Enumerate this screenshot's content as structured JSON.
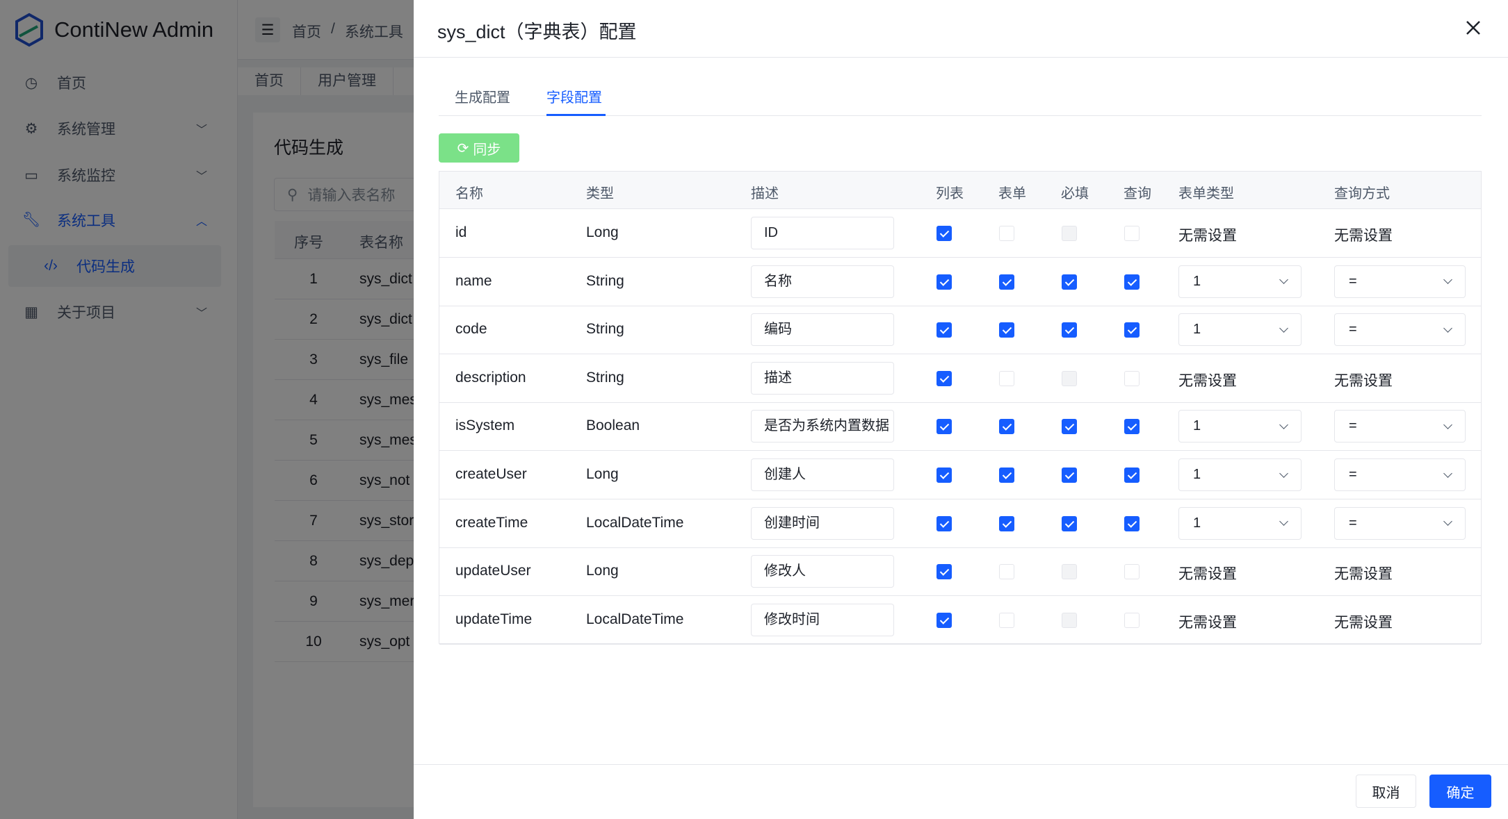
{
  "app": {
    "title": "ContiNew Admin"
  },
  "sidebar": {
    "items": [
      {
        "label": "首页",
        "icon": "dashboard-icon"
      },
      {
        "label": "系统管理",
        "icon": "gear-icon",
        "chevron": "down"
      },
      {
        "label": "系统监控",
        "icon": "monitor-icon",
        "chevron": "down"
      },
      {
        "label": "系统工具",
        "icon": "wrench-icon",
        "chevron": "up",
        "active": true
      },
      {
        "label": "代码生成",
        "icon": "code-icon",
        "sub": true
      },
      {
        "label": "关于项目",
        "icon": "apps-icon",
        "chevron": "down"
      }
    ]
  },
  "breadcrumb": [
    "首页",
    "/",
    "系统工具"
  ],
  "page_tabs": [
    "首页",
    "用户管理"
  ],
  "background": {
    "title": "代码生成",
    "search_placeholder": "请输入表名称",
    "columns": [
      "序号",
      "表名称"
    ],
    "rows": [
      [
        "1",
        "sys_dict"
      ],
      [
        "2",
        "sys_dict"
      ],
      [
        "3",
        "sys_file"
      ],
      [
        "4",
        "sys_mes"
      ],
      [
        "5",
        "sys_mes"
      ],
      [
        "6",
        "sys_not"
      ],
      [
        "7",
        "sys_stor"
      ],
      [
        "8",
        "sys_dep"
      ],
      [
        "9",
        "sys_mer"
      ],
      [
        "10",
        "sys_opt"
      ]
    ]
  },
  "drawer": {
    "title": "sys_dict（字典表）配置",
    "tabs": [
      {
        "label": "生成配置"
      },
      {
        "label": "字段配置",
        "active": true
      }
    ],
    "sync_label": "同步",
    "columns": [
      "名称",
      "类型",
      "描述",
      "列表",
      "表单",
      "必填",
      "查询",
      "表单类型",
      "查询方式"
    ],
    "rows": [
      {
        "name": "id",
        "type": "Long",
        "desc": "ID",
        "checks": [
          "checked",
          "unchecked",
          "disabled",
          "unchecked"
        ],
        "form_type": "无需设置",
        "query_type": "无需设置",
        "selects": false
      },
      {
        "name": "name",
        "type": "String",
        "desc": "名称",
        "checks": [
          "checked",
          "checked",
          "checked",
          "checked"
        ],
        "form_type": "1",
        "query_type": "=",
        "selects": true
      },
      {
        "name": "code",
        "type": "String",
        "desc": "编码",
        "checks": [
          "checked",
          "checked",
          "checked",
          "checked"
        ],
        "form_type": "1",
        "query_type": "=",
        "selects": true
      },
      {
        "name": "description",
        "type": "String",
        "desc": "描述",
        "checks": [
          "checked",
          "unchecked",
          "disabled",
          "unchecked"
        ],
        "form_type": "无需设置",
        "query_type": "无需设置",
        "selects": false
      },
      {
        "name": "isSystem",
        "type": "Boolean",
        "desc": "是否为系统内置数据",
        "checks": [
          "checked",
          "checked",
          "checked",
          "checked"
        ],
        "form_type": "1",
        "query_type": "=",
        "selects": true
      },
      {
        "name": "createUser",
        "type": "Long",
        "desc": "创建人",
        "checks": [
          "checked",
          "checked",
          "checked",
          "checked"
        ],
        "form_type": "1",
        "query_type": "=",
        "selects": true
      },
      {
        "name": "createTime",
        "type": "LocalDateTime",
        "desc": "创建时间",
        "checks": [
          "checked",
          "checked",
          "checked",
          "checked"
        ],
        "form_type": "1",
        "query_type": "=",
        "selects": true
      },
      {
        "name": "updateUser",
        "type": "Long",
        "desc": "修改人",
        "checks": [
          "checked",
          "unchecked",
          "disabled",
          "unchecked"
        ],
        "form_type": "无需设置",
        "query_type": "无需设置",
        "selects": false
      },
      {
        "name": "updateTime",
        "type": "LocalDateTime",
        "desc": "修改时间",
        "checks": [
          "checked",
          "unchecked",
          "disabled",
          "unchecked"
        ],
        "form_type": "无需设置",
        "query_type": "无需设置",
        "selects": false
      }
    ],
    "cancel_label": "取消",
    "ok_label": "确定"
  },
  "colors": {
    "primary": "#165dff",
    "sync": "#7be188",
    "overlay": "rgba(29,33,41,0.6)"
  }
}
